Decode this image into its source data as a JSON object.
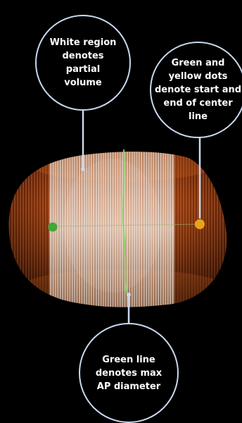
{
  "callouts": {
    "white_region": "White region denotes partial volume",
    "dots": "Green and yellow dots denote start and end of center line",
    "green_line": "Green line denotes max AP diameter"
  },
  "colors": {
    "background": "#000000",
    "callout_border": "#c8d8ee",
    "volume_orange": "#e26b1e",
    "partial_volume_white": "#e8e0d6",
    "start_dot": "#3ea83a",
    "end_dot": "#e8a21c",
    "max_ap_line": "#7ed957"
  }
}
